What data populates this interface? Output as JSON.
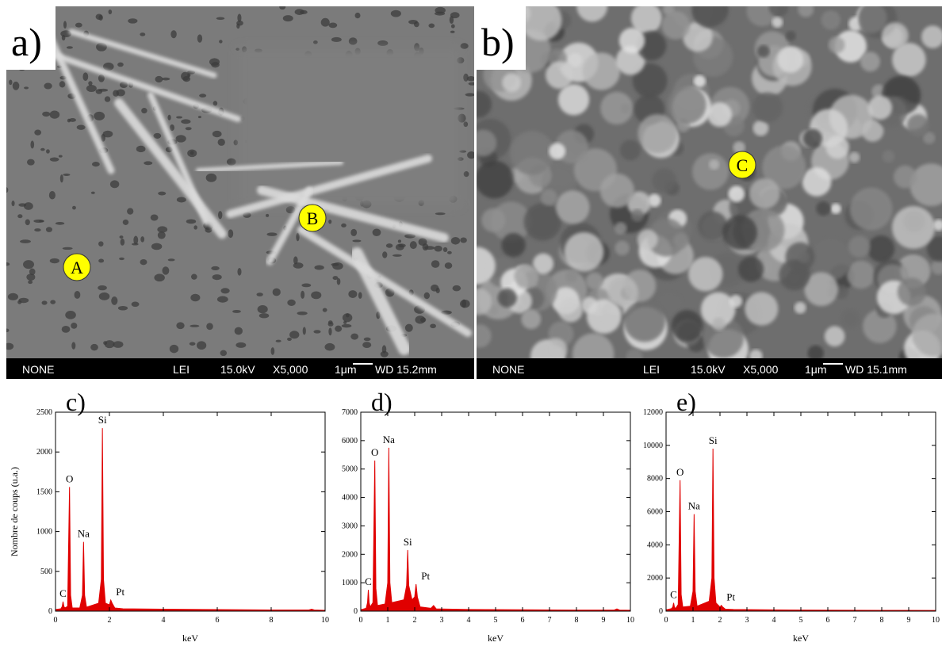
{
  "panels": [
    {
      "label": "a)",
      "info": [
        "NONE",
        "LEI",
        "15.0kV",
        "X5,000",
        "1μm",
        "WD 15.2mm"
      ],
      "markers": [
        "A",
        "B"
      ]
    },
    {
      "label": "b)",
      "info": [
        "NONE",
        "LEI",
        "15.0kV",
        "X5,000",
        "1μm",
        "WD 15.1mm"
      ],
      "markers": [
        "C"
      ]
    }
  ],
  "chart_data": [
    {
      "type": "area",
      "title": "c)",
      "x_label": "keV",
      "y_label": "Nombre de coups (u.a.)",
      "color": "#e00000",
      "x": [
        0,
        0.2,
        0.25,
        0.28,
        0.31,
        0.35,
        0.45,
        0.52,
        0.56,
        0.62,
        0.9,
        1.0,
        1.04,
        1.08,
        1.15,
        1.6,
        1.7,
        1.74,
        1.78,
        1.85,
        2.0,
        2.05,
        2.1,
        2.2,
        2.5,
        4,
        6,
        8,
        9.4,
        9.5,
        9.6,
        10
      ],
      "values": [
        20,
        30,
        60,
        120,
        60,
        40,
        60,
        1560,
        200,
        40,
        40,
        200,
        870,
        200,
        50,
        100,
        400,
        2300,
        400,
        100,
        80,
        140,
        100,
        40,
        30,
        25,
        20,
        15,
        15,
        25,
        15,
        10
      ],
      "xlim": [
        0,
        10
      ],
      "ylim": [
        0,
        2500
      ],
      "xticks": [
        0,
        2,
        4,
        6,
        8,
        10
      ],
      "yticks": [
        0,
        500,
        1000,
        1500,
        2000,
        2500
      ],
      "annotations": [
        {
          "text": "C",
          "x": 0.28,
          "y": 120
        },
        {
          "text": "O",
          "x": 0.52,
          "y": 1560
        },
        {
          "text": "Na",
          "x": 1.04,
          "y": 870
        },
        {
          "text": "Si",
          "x": 1.74,
          "y": 2300
        },
        {
          "text": "Pt",
          "x": 2.05,
          "y": 140
        }
      ]
    },
    {
      "type": "area",
      "title": "d)",
      "x_label": "keV",
      "color": "#e00000",
      "x": [
        0,
        0.2,
        0.25,
        0.28,
        0.31,
        0.35,
        0.45,
        0.52,
        0.56,
        0.62,
        0.9,
        1.0,
        1.04,
        1.08,
        1.15,
        1.6,
        1.7,
        1.74,
        1.78,
        1.9,
        2.0,
        2.05,
        2.1,
        2.2,
        2.6,
        2.7,
        2.8,
        4,
        6,
        8,
        9.4,
        9.5,
        9.6,
        10
      ],
      "values": [
        50,
        100,
        300,
        750,
        300,
        150,
        300,
        5300,
        800,
        200,
        250,
        1000,
        5750,
        1000,
        300,
        400,
        900,
        2150,
        900,
        400,
        500,
        950,
        500,
        150,
        100,
        200,
        80,
        60,
        50,
        40,
        40,
        80,
        40,
        30
      ],
      "xlim": [
        0,
        10
      ],
      "ylim": [
        0,
        7000
      ],
      "xticks": [
        0,
        1,
        2,
        3,
        4,
        5,
        6,
        7,
        8,
        9,
        10
      ],
      "yticks": [
        0,
        1000,
        2000,
        3000,
        4000,
        5000,
        6000,
        7000
      ],
      "annotations": [
        {
          "text": "C",
          "x": 0.28,
          "y": 750
        },
        {
          "text": "O",
          "x": 0.52,
          "y": 5300
        },
        {
          "text": "Na",
          "x": 1.04,
          "y": 5750
        },
        {
          "text": "Si",
          "x": 1.74,
          "y": 2150
        },
        {
          "text": "Pt",
          "x": 2.05,
          "y": 950
        }
      ]
    },
    {
      "type": "area",
      "title": "e)",
      "x_label": "keV",
      "color": "#e00000",
      "x": [
        0,
        0.2,
        0.25,
        0.28,
        0.31,
        0.35,
        0.45,
        0.52,
        0.56,
        0.62,
        0.9,
        1.0,
        1.04,
        1.08,
        1.15,
        1.6,
        1.7,
        1.74,
        1.78,
        1.85,
        2.0,
        2.05,
        2.1,
        2.2,
        2.5,
        4,
        6,
        8,
        10
      ],
      "values": [
        80,
        150,
        250,
        500,
        250,
        150,
        400,
        7900,
        1000,
        250,
        300,
        1200,
        5850,
        1200,
        300,
        600,
        2000,
        9800,
        2000,
        500,
        250,
        350,
        250,
        120,
        100,
        80,
        60,
        50,
        40
      ],
      "xlim": [
        0,
        10
      ],
      "ylim": [
        0,
        12000
      ],
      "xticks": [
        0,
        1,
        2,
        3,
        4,
        5,
        6,
        7,
        8,
        9,
        10
      ],
      "yticks": [
        0,
        2000,
        4000,
        6000,
        8000,
        10000,
        12000
      ],
      "annotations": [
        {
          "text": "C",
          "x": 0.28,
          "y": 500
        },
        {
          "text": "O",
          "x": 0.52,
          "y": 7900
        },
        {
          "text": "Na",
          "x": 1.04,
          "y": 5850
        },
        {
          "text": "Si",
          "x": 1.74,
          "y": 9800
        },
        {
          "text": "Pt",
          "x": 2.05,
          "y": 350
        }
      ]
    }
  ]
}
